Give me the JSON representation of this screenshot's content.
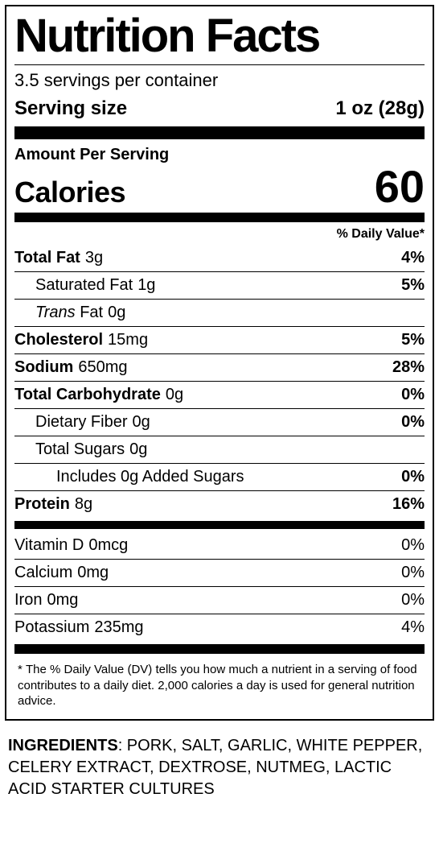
{
  "title": "Nutrition Facts",
  "servings_per_container": "3.5 servings per container",
  "serving_size_label": "Serving size",
  "serving_size_value": "1 oz (28g)",
  "amount_per_serving": "Amount Per Serving",
  "calories_label": "Calories",
  "calories_value": "60",
  "dv_header": "% Daily Value*",
  "nutrients": {
    "total_fat": {
      "name": "Total Fat",
      "amount": "3g",
      "dv": "4%"
    },
    "sat_fat": {
      "name": "Saturated Fat",
      "amount": "1g",
      "dv": "5%"
    },
    "trans_fat": {
      "name_prefix": "Trans",
      "name_suffix": " Fat",
      "amount": "0g"
    },
    "cholesterol": {
      "name": "Cholesterol",
      "amount": "15mg",
      "dv": "5%"
    },
    "sodium": {
      "name": "Sodium",
      "amount": "650mg",
      "dv": "28%"
    },
    "total_carb": {
      "name": "Total Carbohydrate",
      "amount": "0g",
      "dv": "0%"
    },
    "fiber": {
      "name": "Dietary Fiber",
      "amount": "0g",
      "dv": "0%"
    },
    "total_sugars": {
      "name": "Total Sugars",
      "amount": "0g"
    },
    "added_sugars": {
      "text": "Includes 0g Added Sugars",
      "dv": "0%"
    },
    "protein": {
      "name": "Protein",
      "amount": "8g",
      "dv": "16%"
    }
  },
  "micros": {
    "vitamin_d": {
      "name": "Vitamin D",
      "amount": "0mcg",
      "dv": "0%"
    },
    "calcium": {
      "name": "Calcium",
      "amount": "0mg",
      "dv": "0%"
    },
    "iron": {
      "name": "Iron",
      "amount": "0mg",
      "dv": "0%"
    },
    "potassium": {
      "name": "Potassium",
      "amount": "235mg",
      "dv": "4%"
    }
  },
  "footnote_star": "*",
  "footnote": "The % Daily Value (DV) tells you how much a nutrient in a serving of food contributes to a daily diet. 2,000 calories a day is used for general nutrition advice.",
  "ingredients_label": "INGREDIENTS",
  "ingredients_text": ": PORK, SALT, GARLIC, WHITE PEPPER, CELERY EXTRACT, DEXTROSE, NUTMEG, LACTIC ACID STARTER CULTURES"
}
